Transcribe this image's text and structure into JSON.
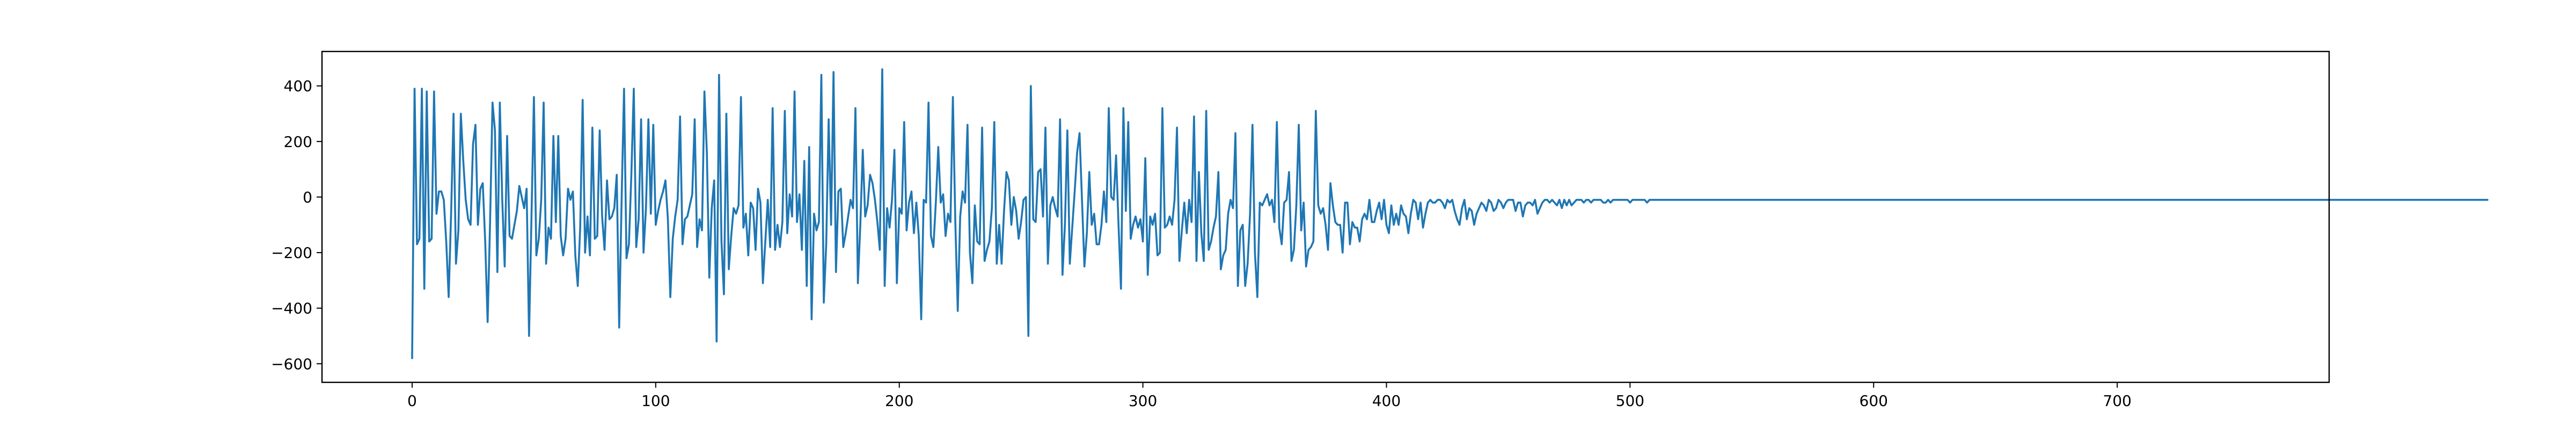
{
  "chart_data": {
    "type": "line",
    "title": "",
    "xlabel": "",
    "ylabel": "",
    "xlim": [
      -37,
      787
    ],
    "ylim": [
      -667,
      524
    ],
    "grid": false,
    "legend": "none",
    "x_ticks": [
      {
        "value": 0,
        "label": "0"
      },
      {
        "value": 100,
        "label": "100"
      },
      {
        "value": 200,
        "label": "200"
      },
      {
        "value": 300,
        "label": "300"
      },
      {
        "value": 400,
        "label": "400"
      },
      {
        "value": 500,
        "label": "500"
      },
      {
        "value": 600,
        "label": "600"
      },
      {
        "value": 700,
        "label": "700"
      }
    ],
    "y_ticks": [
      {
        "value": 400,
        "label": "400"
      },
      {
        "value": 200,
        "label": "200"
      },
      {
        "value": 0,
        "label": "0"
      },
      {
        "value": -200,
        "label": "−200"
      },
      {
        "value": -400,
        "label": "−400"
      },
      {
        "value": -600,
        "label": "−600"
      }
    ],
    "series": [
      {
        "name": "",
        "color": "#1f77b4",
        "x_start": 0,
        "x_step": 1,
        "values": [
          -580,
          390,
          -170,
          -150,
          390,
          -330,
          380,
          -160,
          -150,
          380,
          -60,
          20,
          20,
          -10,
          -160,
          -360,
          -60,
          300,
          -240,
          -120,
          300,
          130,
          -10,
          -80,
          -100,
          190,
          260,
          -100,
          30,
          50,
          -160,
          -450,
          -90,
          340,
          240,
          -270,
          340,
          -10,
          -250,
          220,
          -140,
          -150,
          -100,
          -50,
          40,
          0,
          -40,
          30,
          -500,
          -70,
          360,
          -210,
          -150,
          -10,
          340,
          -240,
          -110,
          -150,
          220,
          -90,
          220,
          -140,
          -210,
          -150,
          30,
          -10,
          20,
          -210,
          -320,
          -110,
          350,
          -200,
          -70,
          -210,
          250,
          -150,
          -140,
          240,
          -70,
          -190,
          60,
          -80,
          -70,
          -40,
          80,
          -470,
          -10,
          390,
          -220,
          -170,
          80,
          390,
          -180,
          -80,
          280,
          -200,
          -40,
          280,
          -60,
          260,
          -100,
          -50,
          -10,
          20,
          60,
          -80,
          -360,
          -150,
          -70,
          -10,
          290,
          -170,
          -80,
          -70,
          -30,
          10,
          280,
          -180,
          -80,
          -120,
          380,
          160,
          -290,
          -40,
          60,
          -520,
          440,
          -160,
          -350,
          300,
          -260,
          -140,
          -40,
          -60,
          -30,
          360,
          -110,
          -60,
          -210,
          -20,
          -40,
          -190,
          30,
          -20,
          -310,
          -160,
          -10,
          -180,
          320,
          -190,
          -100,
          -180,
          -90,
          310,
          -130,
          10,
          -70,
          380,
          -90,
          10,
          -190,
          130,
          -320,
          180,
          -440,
          -60,
          -120,
          -90,
          440,
          -380,
          -170,
          280,
          -100,
          450,
          -270,
          20,
          30,
          -180,
          -130,
          -70,
          -10,
          -40,
          320,
          -310,
          -100,
          170,
          -70,
          -30,
          80,
          50,
          -10,
          -90,
          -190,
          460,
          -320,
          -40,
          -110,
          -10,
          170,
          -310,
          -40,
          -60,
          270,
          -120,
          -20,
          20,
          -130,
          -20,
          -140,
          -440,
          -10,
          -20,
          340,
          -140,
          -180,
          -20,
          180,
          -20,
          10,
          -140,
          -60,
          -90,
          360,
          -90,
          -410,
          -70,
          20,
          -20,
          260,
          -200,
          -310,
          -30,
          -160,
          -170,
          250,
          -230,
          -190,
          -160,
          -40,
          270,
          -240,
          -100,
          -240,
          -50,
          90,
          60,
          -100,
          0,
          -50,
          -150,
          -90,
          -10,
          0,
          -500,
          400,
          -80,
          -90,
          90,
          100,
          -70,
          250,
          -240,
          -30,
          0,
          -40,
          -70,
          280,
          -280,
          -100,
          240,
          -240,
          -110,
          20,
          160,
          230,
          -10,
          -250,
          -130,
          90,
          -100,
          -60,
          -170,
          -170,
          -100,
          20,
          -90,
          320,
          0,
          -10,
          150,
          -100,
          -330,
          320,
          -50,
          270,
          -150,
          -100,
          -70,
          -110,
          -80,
          -160,
          140,
          -280,
          -70,
          -100,
          -60,
          -210,
          -200,
          320,
          -110,
          -100,
          -70,
          -100,
          -10,
          250,
          -230,
          -120,
          -20,
          -130,
          -10,
          -90,
          290,
          -230,
          90,
          -130,
          -230,
          310,
          -190,
          -160,
          -110,
          -70,
          90,
          -260,
          -210,
          -190,
          -60,
          -10,
          -40,
          230,
          -320,
          -120,
          -100,
          -320,
          -240,
          -60,
          260,
          -200,
          -360,
          -20,
          -30,
          -10,
          10,
          -30,
          -10,
          -90,
          270,
          -110,
          -170,
          -20,
          -10,
          90,
          -230,
          -190,
          -30,
          260,
          -120,
          -20,
          -250,
          -190,
          -180,
          -160,
          310,
          -30,
          -60,
          -40,
          -100,
          -190,
          50,
          -30,
          -90,
          -100,
          -100,
          -200,
          -20,
          -20,
          -170,
          -90,
          -110,
          -110,
          -160,
          -80,
          -60,
          -80,
          -10,
          -90,
          -90,
          -50,
          -20,
          -80,
          -10,
          -100,
          -130,
          -30,
          -100,
          -60,
          -100,
          -30,
          -60,
          -70,
          -130,
          -60,
          -10,
          -20,
          -80,
          -20,
          -110,
          -60,
          -20,
          -10,
          -20,
          -20,
          -10,
          -10,
          -20,
          -40,
          -10,
          -20,
          -10,
          -50,
          -80,
          -100,
          -40,
          -10,
          -80,
          -40,
          -50,
          -100,
          -60,
          -40,
          -20,
          -30,
          -50,
          -10,
          -20,
          -50,
          -40,
          -10,
          -20,
          -40,
          -20,
          -10,
          -10,
          -10,
          -50,
          -20,
          -20,
          -70,
          -30,
          -20,
          -20,
          -30,
          -10,
          -60,
          -40,
          -20,
          -10,
          -10,
          -20,
          -10,
          -20,
          -30,
          -10,
          -40,
          -10,
          -30,
          -10,
          -30,
          -20,
          -10,
          -10,
          -10,
          -20,
          -10,
          -10,
          -20,
          -10,
          -10,
          -10,
          -10,
          -20,
          -20,
          -10,
          -20,
          -10,
          -10,
          -10,
          -10,
          -10,
          -10,
          -10,
          -20,
          -10,
          -10,
          -10,
          -10,
          -10,
          -10,
          -20,
          -10,
          -10,
          -10,
          -10,
          -10,
          -10,
          -10,
          -10,
          -10,
          -10,
          -10,
          -10,
          -10,
          -10,
          -10,
          -10,
          -10,
          -10,
          -10,
          -10,
          -10,
          -10,
          -10,
          -10,
          -10,
          -10,
          -10,
          -10,
          -10,
          -10,
          -10,
          -10,
          -10,
          -10,
          -10,
          -10,
          -10,
          -10,
          -10,
          -10,
          -10,
          -10,
          -10,
          -10,
          -10,
          -10,
          -10,
          -10,
          -10,
          -10,
          -10,
          -10,
          -10,
          -10,
          -10,
          -10,
          -10,
          -10,
          -10,
          -10,
          -10,
          -10,
          -10,
          -10,
          -10,
          -10,
          -10,
          -10,
          -10,
          -10,
          -10,
          -10,
          -10,
          -10,
          -10,
          -10,
          -10,
          -10,
          -10,
          -10,
          -10,
          -10,
          -10,
          -10,
          -10,
          -10,
          -10,
          -10,
          -10,
          -10,
          -10,
          -10,
          -10,
          -10,
          -10,
          -10,
          -10,
          -10,
          -10,
          -10,
          -10,
          -10,
          -10,
          -10,
          -10,
          -10,
          -10,
          -10,
          -10,
          -10,
          -10,
          -10,
          -10,
          -10,
          -10,
          -10,
          -10,
          -10,
          -10,
          -10,
          -10,
          -10,
          -10,
          -10,
          -10,
          -10,
          -10,
          -10,
          -10,
          -10,
          -10,
          -10,
          -10,
          -10,
          -10,
          -10,
          -10,
          -10,
          -10,
          -10,
          -10,
          -10,
          -10,
          -10,
          -10,
          -10,
          -10,
          -10,
          -10,
          -10,
          -10,
          -10,
          -10,
          -10,
          -10,
          -10,
          -10,
          -10,
          -10,
          -10,
          -10,
          -10,
          -10,
          -10,
          -10,
          -10,
          -10,
          -10,
          -10,
          -10,
          -10,
          -10,
          -10,
          -10,
          -10,
          -10,
          -10,
          -10,
          -10,
          -10,
          -10,
          -10,
          -10,
          -10,
          -10,
          -10,
          -10,
          -10,
          -10,
          -10,
          -10,
          -10,
          -10,
          -10,
          -10,
          -10,
          -10,
          -10,
          -10,
          -10,
          -10,
          -10,
          -10,
          -10,
          -10,
          -10,
          -10,
          -10,
          -10,
          -10,
          -10,
          -10,
          -10,
          -10,
          -10,
          -10,
          -10,
          -10,
          -10,
          -10,
          -10,
          -10,
          -10,
          -10,
          -10,
          -10,
          -10,
          -10,
          -10,
          -10,
          -10,
          -10,
          -10,
          -10,
          -10,
          -10,
          -10,
          -10,
          -10,
          -10,
          -10,
          -10,
          -10,
          -10,
          -10,
          -10,
          -10,
          -10,
          -10,
          -10,
          -10,
          -10,
          -10,
          -10,
          -10,
          -10,
          -10,
          -10,
          -10,
          -10,
          -10,
          -10,
          -10,
          -10,
          -10,
          -10,
          -10,
          -10,
          -10,
          -10,
          -10,
          -10,
          -10,
          -10,
          -10,
          -10,
          -10,
          -10,
          -10,
          -10,
          -10,
          -10,
          -10,
          -10,
          -10,
          -10,
          -10,
          -10,
          -10,
          -10,
          -10,
          -10,
          -10,
          -10,
          -10,
          -10,
          -10,
          -10,
          -10,
          -10,
          -10,
          -10,
          -10,
          -10,
          -10,
          -10,
          -10,
          -10,
          -10,
          -10,
          -10,
          -10,
          -10,
          -10,
          -10,
          -10,
          -10,
          -10,
          -10,
          -10,
          -10,
          -10,
          -10,
          -10,
          -10,
          -10,
          -10,
          -10,
          -10,
          -10,
          -10,
          -10,
          -10,
          -10,
          -10,
          -10,
          -10,
          -10,
          -10,
          -10,
          -10,
          -10,
          -10,
          -10,
          -10
        ]
      }
    ]
  }
}
